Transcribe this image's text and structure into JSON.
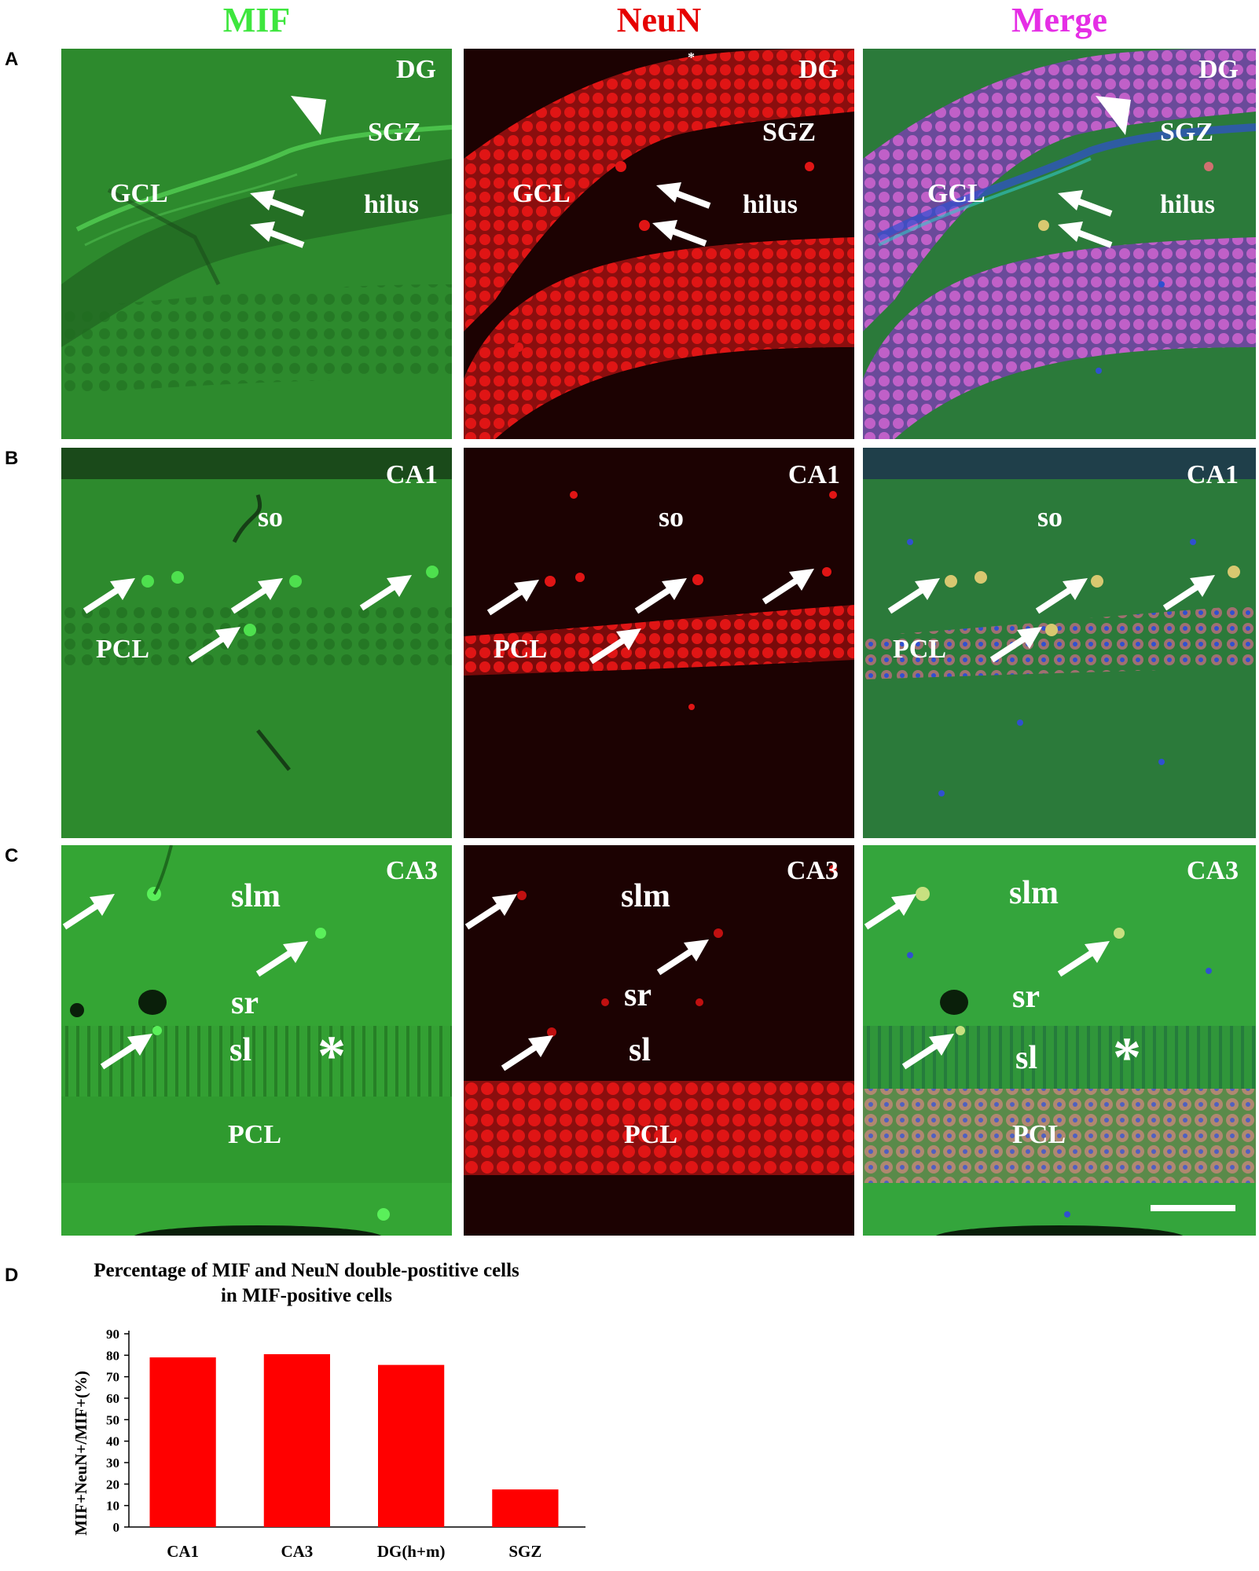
{
  "headers": {
    "mif": {
      "text": "MIF",
      "color": "#3ee63e"
    },
    "neun": {
      "text": "NeuN",
      "color": "#e60000"
    },
    "merge": {
      "text": "Merge",
      "color": "#e52ee5"
    }
  },
  "rows": {
    "a": {
      "letter": "A",
      "mif": {
        "region": "DG",
        "labels": [
          "SGZ",
          "GCL",
          "hilus"
        ]
      },
      "neun": {
        "region": "DG",
        "labels": [
          "SGZ",
          "GCL",
          "hilus"
        ],
        "mark": "*"
      },
      "merge": {
        "region": "DG",
        "labels": [
          "SGZ",
          "GCL",
          "hilus"
        ]
      }
    },
    "b": {
      "letter": "B",
      "mif": {
        "region": "CA1",
        "labels": [
          "so",
          "PCL"
        ]
      },
      "neun": {
        "region": "CA1",
        "labels": [
          "so",
          "PCL"
        ]
      },
      "merge": {
        "region": "CA1",
        "labels": [
          "so",
          "PCL"
        ]
      }
    },
    "c": {
      "letter": "C",
      "mif": {
        "region": "CA3",
        "labels": [
          "slm",
          "sr",
          "sl",
          "PCL"
        ],
        "mark": "*"
      },
      "neun": {
        "region": "CA3",
        "labels": [
          "slm",
          "sr",
          "sl",
          "PCL"
        ]
      },
      "merge": {
        "region": "CA3",
        "labels": [
          "slm",
          "sr",
          "sl",
          "PCL"
        ],
        "mark": "*"
      }
    }
  },
  "colors": {
    "mif_bg": "#2d8a2d",
    "neun_bg": "#1c0202",
    "merge_bg": "#2b7a3a",
    "neun_cell": "#e01515",
    "mif_cell": "#4ee04e",
    "merge_cell": "#c060c8",
    "merge_nucleus": "#3050d0",
    "bar": "#ff0000"
  },
  "row_d": {
    "letter": "D"
  },
  "chart_data": {
    "type": "bar",
    "title": "Percentage of MIF and NeuN double-postitive cells in MIF-positive cells",
    "title_lines": [
      "Percentage of MIF and NeuN double-postitive cells",
      "in MIF-positive cells"
    ],
    "ylabel": "MIF+NeuN+/MIF+(%)",
    "xlabel": "",
    "categories": [
      "CA1",
      "CA3",
      "DG(h+m)",
      "SGZ"
    ],
    "values": [
      79,
      80.5,
      75.5,
      17.5
    ],
    "ylim": [
      0,
      90
    ],
    "yticks": [
      "0",
      "10",
      "20",
      "30",
      "40",
      "50",
      "60",
      "70",
      "80",
      "90"
    ],
    "grid": false,
    "legend": "none"
  }
}
